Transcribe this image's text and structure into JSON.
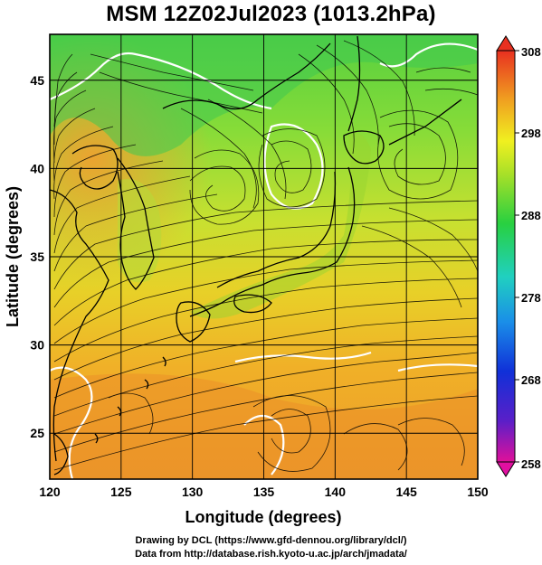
{
  "title": "MSM 12Z02Jul2023 (1013.2hPa)",
  "axes": {
    "x_label": "Longitude (degrees)",
    "y_label": "Latitude  (degrees)",
    "x_ticks": [
      "120",
      "125",
      "130",
      "135",
      "140",
      "145",
      "150"
    ],
    "y_ticks": [
      "25",
      "30",
      "35",
      "40",
      "45"
    ]
  },
  "map": {
    "lon_range": [
      120,
      150
    ],
    "lat_range": [
      22.4,
      47.6
    ],
    "gridlines": true,
    "field": "temperature",
    "overlay": "streamlines"
  },
  "colorbar": {
    "ticks": [
      "308",
      "298",
      "288",
      "278",
      "268",
      "258"
    ],
    "range": [
      258,
      308
    ],
    "extend": "both"
  },
  "credits": {
    "line1": "Drawing by DCL (https://www.gfd-dennou.org/library/dcl/)",
    "line2": "Data from http://database.rish.kyoto-u.ac.jp/arch/jmadata/"
  },
  "colors": {
    "frame": "#000000",
    "coastline": "#000000",
    "contour": "#ffffff"
  }
}
